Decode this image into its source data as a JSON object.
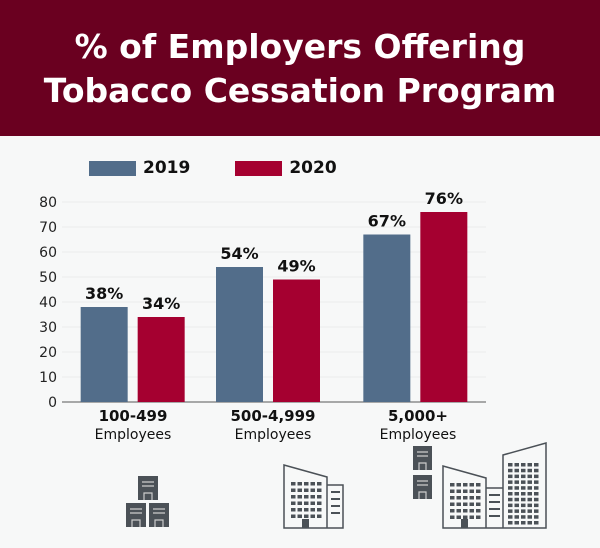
{
  "header": {
    "title_line1": "% of Employers Offering",
    "title_line2": "Tobacco Cessation Program"
  },
  "colors": {
    "header": "#6a0020",
    "series_2019": "#526d8a",
    "series_2020": "#a50030",
    "background": "#f7f8f8"
  },
  "chart_data": {
    "type": "bar",
    "title": "% of Employers Offering Tobacco Cessation Program",
    "categories": [
      "100-499 Employees",
      "500-4,999 Employees",
      "5,000+ Employees"
    ],
    "category_labels": [
      {
        "main": "100-499",
        "sub": "Employees"
      },
      {
        "main": "500-4,999",
        "sub": "Employees"
      },
      {
        "main": "5,000+",
        "sub": "Employees"
      }
    ],
    "series": [
      {
        "name": "2019",
        "values": [
          38,
          54,
          67
        ],
        "labels": [
          "38%",
          "54%",
          "67%"
        ]
      },
      {
        "name": "2020",
        "values": [
          34,
          49,
          76
        ],
        "labels": [
          "34%",
          "49%",
          "76%"
        ]
      }
    ],
    "ylim": [
      0,
      80
    ],
    "yticks": [
      "0",
      "10",
      "20",
      "30",
      "40",
      "50",
      "60",
      "70",
      "80"
    ],
    "grid": true,
    "legend": "top-left"
  },
  "icons": [
    "small-buildings-icon",
    "office-building-icon",
    "large-office-complex-icon"
  ]
}
